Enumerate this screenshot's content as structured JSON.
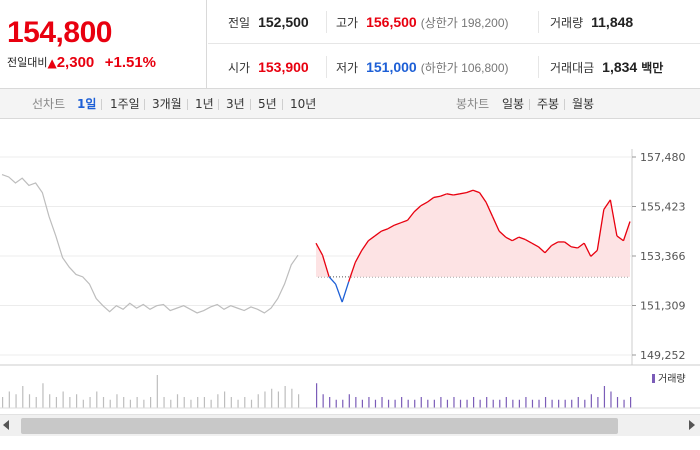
{
  "quote": {
    "price": "154,800",
    "change_label": "전일대비",
    "change_arrow": "▲",
    "change_amount": "2,300",
    "change_percent": "+1.51%"
  },
  "stats": {
    "prev_close_label": "전일",
    "prev_close": "152,500",
    "high_label": "고가",
    "high": "156,500",
    "upper_limit": "(상한가 198,200)",
    "volume_label": "거래량",
    "volume": "11,848",
    "open_label": "시가",
    "open": "153,900",
    "low_label": "저가",
    "low": "151,000",
    "lower_limit": "(하한가 106,800)",
    "amount_label": "거래대금",
    "amount": "1,834",
    "amount_unit": "백만"
  },
  "tabs": {
    "line_label": "선차트",
    "line_items": [
      "1일",
      "1주일",
      "3개월",
      "1년",
      "3년",
      "5년",
      "10년"
    ],
    "active_line_item": "1일",
    "candle_label": "봉차트",
    "candle_items": [
      "일봉",
      "주봉",
      "월봉"
    ]
  },
  "colors": {
    "up": "#e8000f",
    "down": "#1d5fd6",
    "prev": "#bdbdbd",
    "volume": "#7b5cb8",
    "fill": "#fde3e4"
  },
  "chart_data": {
    "type": "line",
    "title": "",
    "xlabel": "",
    "ylabel": "",
    "ylim": [
      149252,
      157480
    ],
    "y_ticks": [
      "157,480",
      "155,423",
      "153,366",
      "151,309",
      "149,252"
    ],
    "baseline": 152500,
    "legend": "거래량",
    "series": [
      {
        "role": "previous-day",
        "values": [
          156750,
          156650,
          156400,
          156600,
          156300,
          156400,
          156000,
          155000,
          154200,
          153300,
          152900,
          152600,
          152500,
          152200,
          151600,
          151300,
          151050,
          151300,
          151150,
          151400,
          151200,
          151350,
          151150,
          151300,
          151350,
          151100,
          151200,
          151300,
          151150,
          151000,
          151100,
          151250,
          151350,
          151150,
          151300,
          151200,
          151100,
          151250,
          151150,
          151000,
          151200,
          151600,
          152200,
          153000,
          153400
        ]
      },
      {
        "role": "today",
        "values": [
          153900,
          153400,
          152500,
          152200,
          151450,
          152300,
          153100,
          153600,
          154000,
          154200,
          154400,
          154500,
          154650,
          154750,
          154850,
          155200,
          155450,
          155600,
          155800,
          155850,
          155950,
          155900,
          155950,
          156000,
          156100,
          156000,
          155600,
          155000,
          154400,
          154150,
          154000,
          154150,
          154050,
          153900,
          153750,
          153500,
          153800,
          153950,
          153950,
          153750,
          153700,
          153900,
          153350,
          153600,
          155300,
          155700,
          154200,
          154000,
          154800
        ]
      }
    ],
    "volume": {
      "previous-day": [
        4,
        6,
        5,
        8,
        5,
        4,
        9,
        5,
        4,
        6,
        4,
        5,
        3,
        4,
        6,
        4,
        3,
        5,
        4,
        3,
        4,
        3,
        4,
        12,
        4,
        3,
        5,
        4,
        3,
        4,
        4,
        3,
        5,
        6,
        4,
        3,
        4,
        3,
        5,
        6,
        7,
        6,
        8,
        7,
        5
      ],
      "today": [
        9,
        5,
        4,
        3,
        3,
        5,
        4,
        3,
        4,
        3,
        4,
        3,
        3,
        4,
        3,
        3,
        4,
        3,
        3,
        4,
        3,
        4,
        3,
        3,
        4,
        3,
        4,
        3,
        3,
        4,
        3,
        3,
        4,
        3,
        3,
        4,
        3,
        3,
        3,
        3,
        4,
        3,
        5,
        4,
        8,
        6,
        4,
        3,
        4
      ]
    }
  }
}
